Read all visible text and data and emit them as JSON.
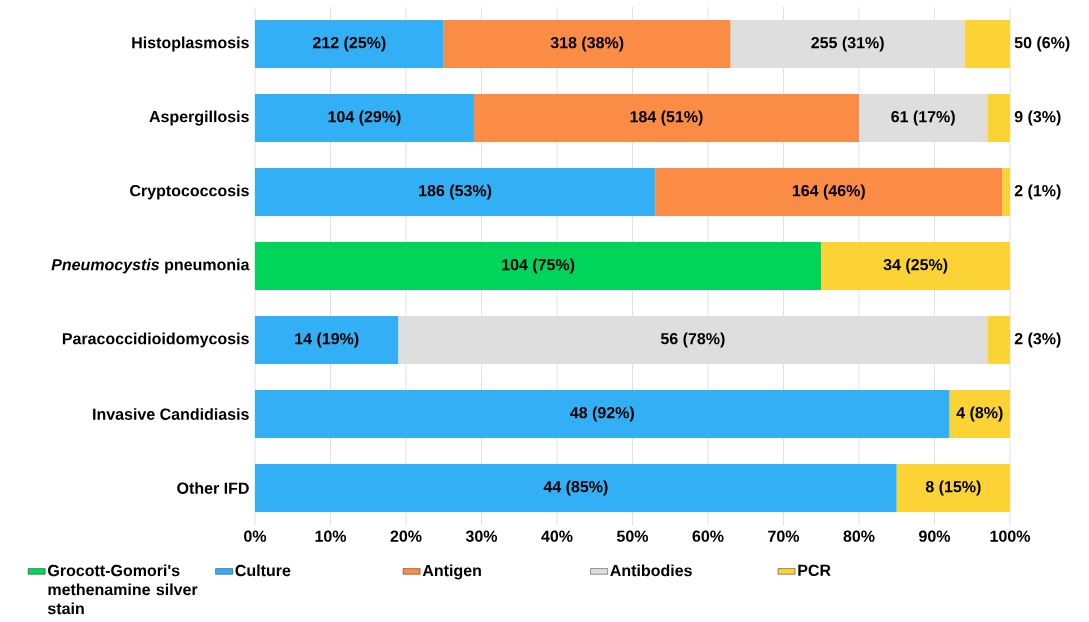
{
  "chart_data": {
    "type": "bar",
    "orientation": "horizontal",
    "stacked": true,
    "categories": [
      "Histoplasmosis",
      "Aspergillosis",
      "Cryptococcosis",
      "*Pneumocystis* pneumonia",
      "Paracoccidioidomycosis",
      "Invasive Candidiasis",
      "Other IFD"
    ],
    "series": [
      {
        "name": "Grocott-Gomori's methenamine silver stain",
        "color": "#00d45a",
        "values": [
          null,
          null,
          null,
          75,
          null,
          null,
          null
        ],
        "value_labels": [
          null,
          null,
          null,
          "104 (75%)",
          null,
          null,
          null
        ]
      },
      {
        "name": "Culture",
        "color": "#33b0f5",
        "values": [
          25,
          29,
          53,
          null,
          19,
          92,
          85
        ],
        "value_labels": [
          "212 (25%)",
          "104 (29%)",
          "186 (53%)",
          null,
          "14 (19%)",
          "48 (92%)",
          "44 (85%)"
        ]
      },
      {
        "name": "Antigen",
        "color": "#fb8c45",
        "values": [
          38,
          51,
          46,
          null,
          null,
          null,
          null
        ],
        "value_labels": [
          "318 (38%)",
          "184 (51%)",
          "164 (46%)",
          null,
          null,
          null,
          null
        ]
      },
      {
        "name": "Antibodies",
        "color": "#dedede",
        "values": [
          31,
          17,
          null,
          null,
          78,
          null,
          null
        ],
        "value_labels": [
          "255 (31%)",
          "61 (17%)",
          null,
          null,
          "56 (78%)",
          null,
          null
        ]
      },
      {
        "name": "PCR",
        "color": "#fbd335",
        "values": [
          6,
          3,
          1,
          25,
          3,
          8,
          15
        ],
        "value_labels": [
          "50 (6%)",
          "9 (3%)",
          "2 (1%)",
          "34 (25%)",
          "2 (3%)",
          "4 (8%)",
          "8 (15%)"
        ]
      }
    ],
    "xlim": [
      0,
      100
    ],
    "xticks": [
      {
        "value": 0,
        "label": "0%"
      },
      {
        "value": 10,
        "label": "10%"
      },
      {
        "value": 20,
        "label": "20%"
      },
      {
        "value": 30,
        "label": "30%"
      },
      {
        "value": 40,
        "label": "40%"
      },
      {
        "value": 50,
        "label": "50%"
      },
      {
        "value": 60,
        "label": "60%"
      },
      {
        "value": 70,
        "label": "70%"
      },
      {
        "value": 80,
        "label": "80%"
      },
      {
        "value": 90,
        "label": "90%"
      },
      {
        "value": 100,
        "label": "100%"
      }
    ],
    "grid": "x",
    "legend": "bottom"
  }
}
